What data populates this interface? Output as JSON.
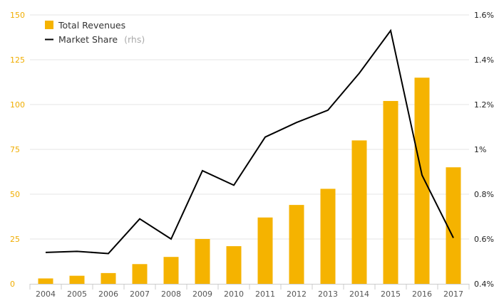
{
  "chart_data": {
    "type": "bar",
    "categories": [
      "2004",
      "2005",
      "2006",
      "2007",
      "2008",
      "2009",
      "2010",
      "2011",
      "2012",
      "2013",
      "2014",
      "2015",
      "2016",
      "2017"
    ],
    "series": [
      {
        "name": "Total Revenues",
        "type": "bar",
        "axis": "left",
        "color": "#f5b300",
        "values": [
          3,
          4.5,
          6,
          11,
          15,
          25,
          21,
          37,
          44,
          53,
          80,
          102,
          115,
          65
        ]
      },
      {
        "name": "Market Share",
        "name_suffix": "(rhs)",
        "type": "line",
        "axis": "right",
        "color": "#000000",
        "values": [
          0.54,
          0.545,
          0.535,
          0.69,
          0.6,
          0.905,
          0.84,
          1.055,
          1.12,
          1.175,
          1.34,
          1.53,
          0.885,
          0.605
        ]
      }
    ],
    "y_left": {
      "min": 0,
      "max": 150,
      "ticks": [
        0,
        25,
        50,
        75,
        100,
        125,
        150
      ],
      "tick_labels": [
        "0",
        "25",
        "50",
        "75",
        "100",
        "125",
        "150"
      ]
    },
    "y_right": {
      "min": 0.4,
      "max": 1.6,
      "ticks": [
        0.4,
        0.6,
        0.8,
        1.0,
        1.2,
        1.4,
        1.6
      ],
      "tick_labels": [
        "0.4%",
        "0.6%",
        "0.8%",
        "1%",
        "1.2%",
        "1.4%",
        "1.6%"
      ]
    },
    "grid": true,
    "legend_position": "top-left",
    "left_tick_color": "#f0ad00"
  }
}
